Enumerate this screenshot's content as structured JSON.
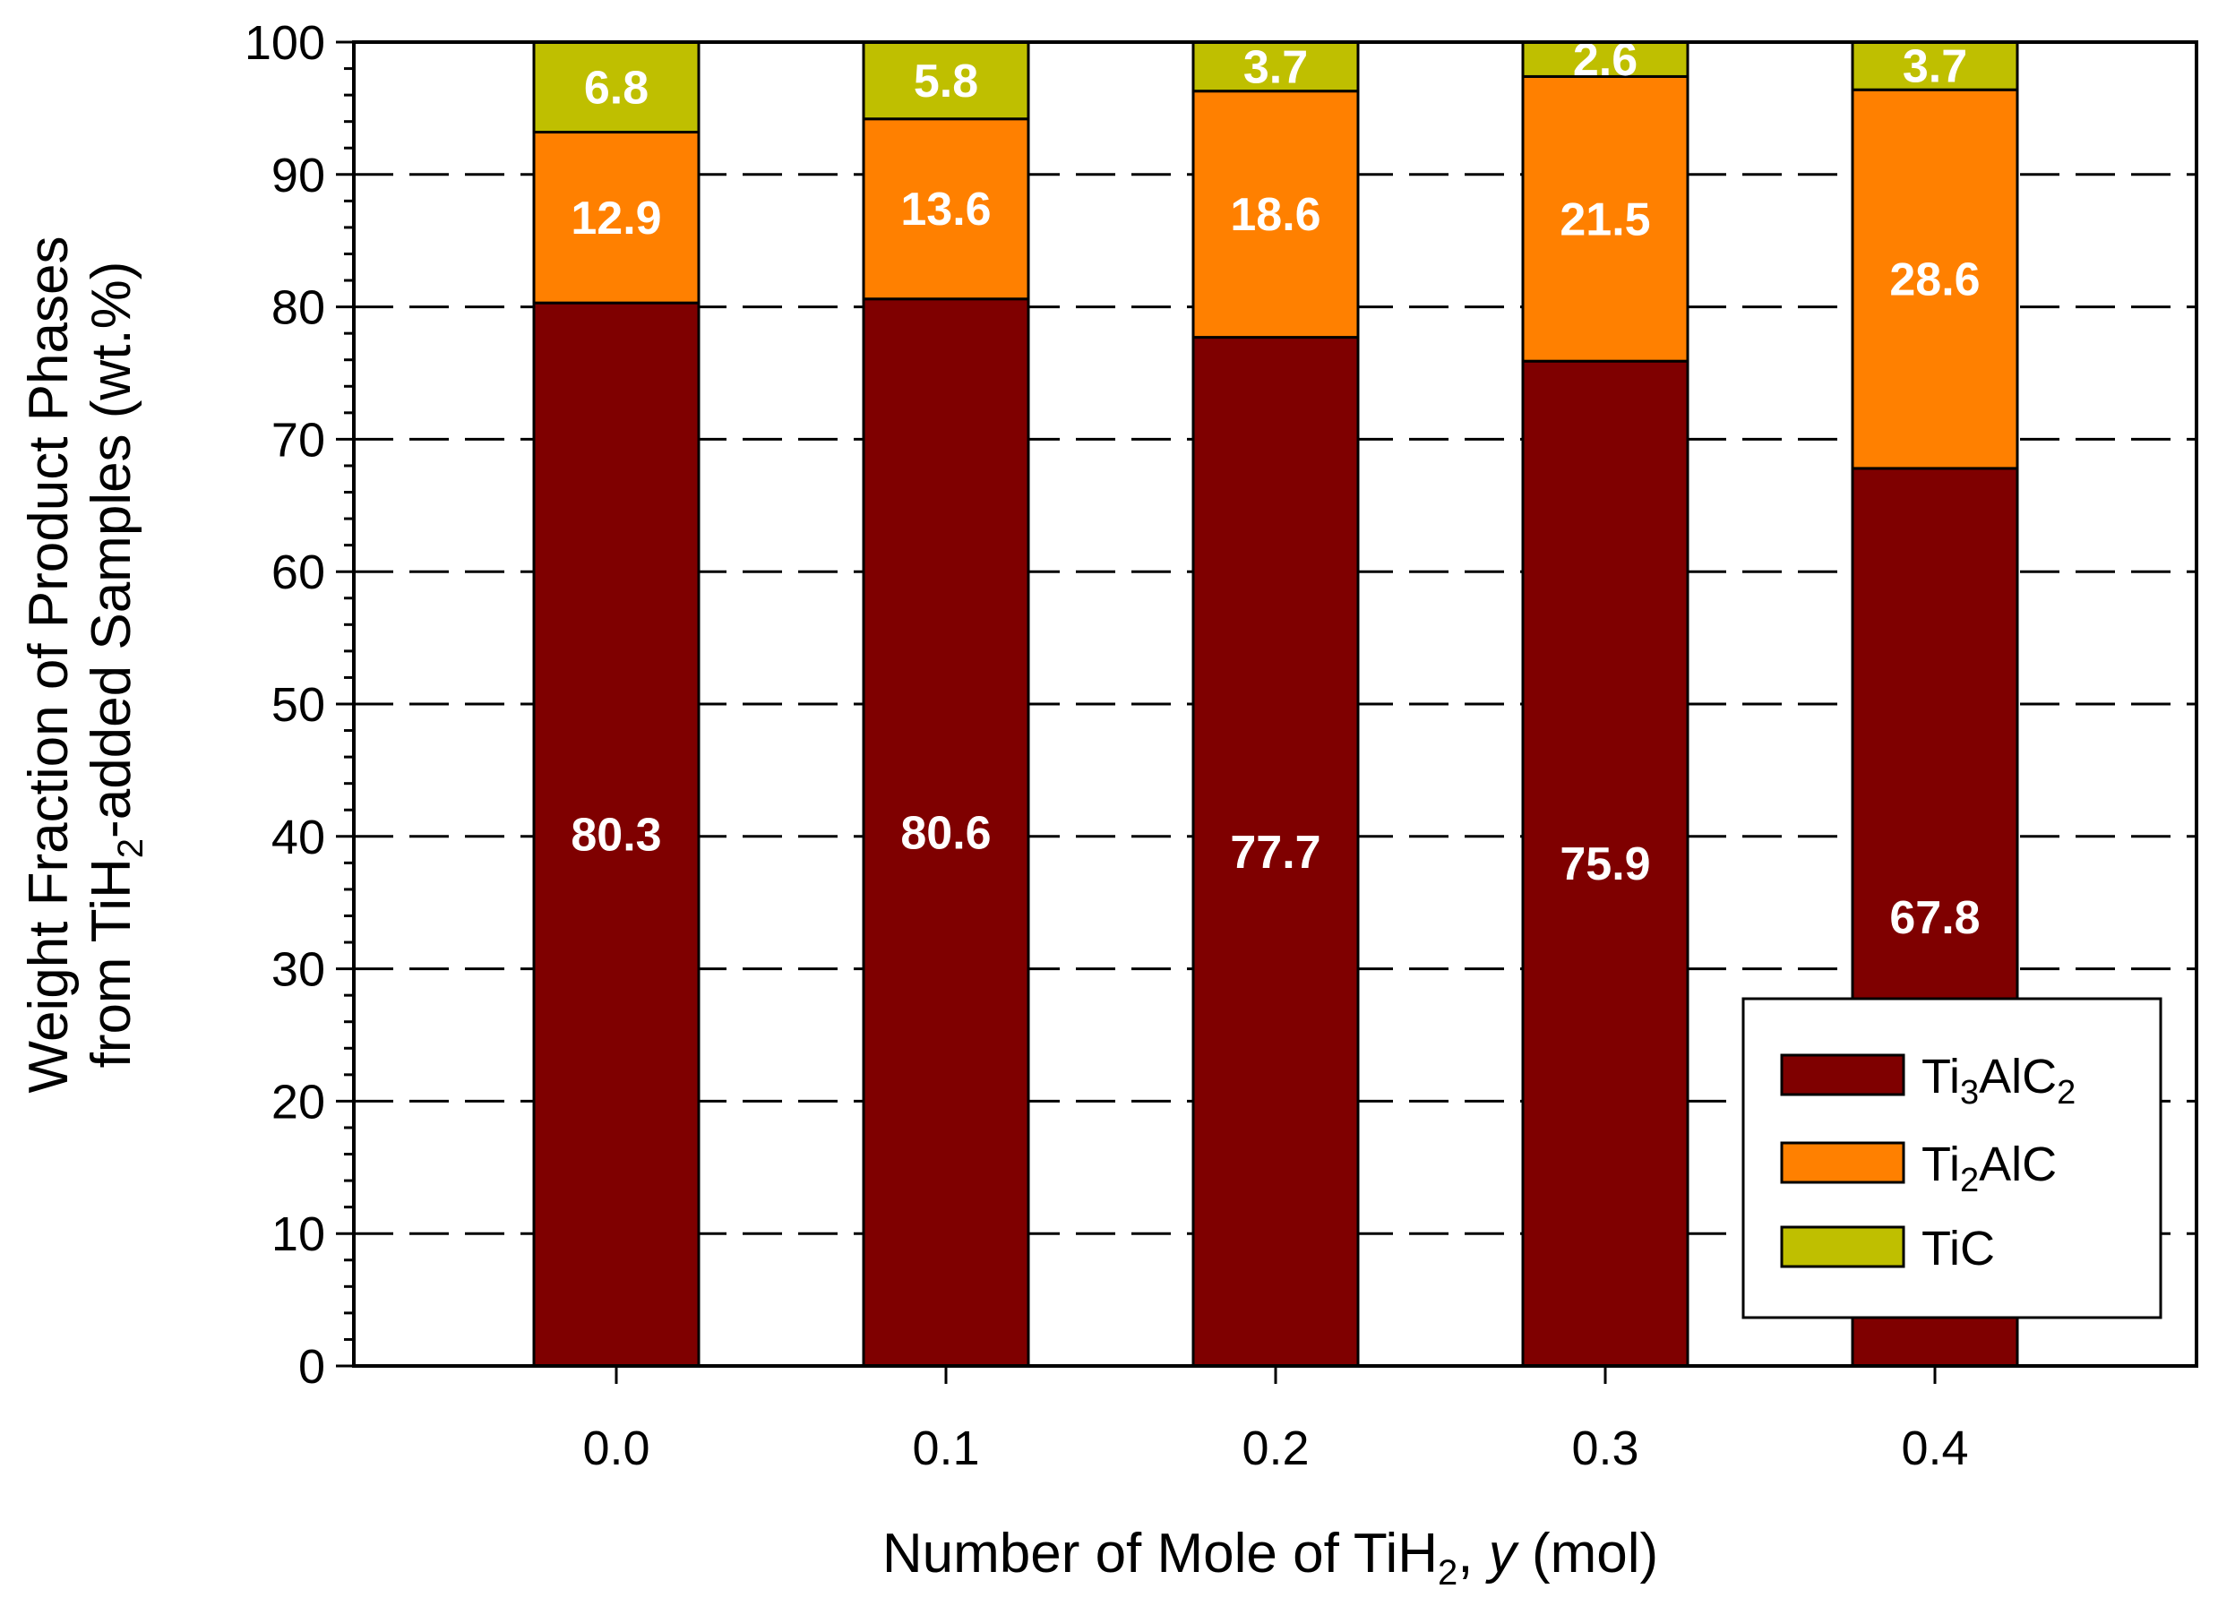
{
  "chart_data": {
    "type": "bar",
    "stacked": true,
    "categories": [
      "0.0",
      "0.1",
      "0.2",
      "0.3",
      "0.4"
    ],
    "series": [
      {
        "name": "Ti3AlC2",
        "label_main": "Ti",
        "label_sub1": "3",
        "label_mid": "AlC",
        "label_sub2": "2",
        "color": "#7f0000",
        "values": [
          80.3,
          80.6,
          77.7,
          75.9,
          67.8
        ]
      },
      {
        "name": "Ti2AlC",
        "label_main": "Ti",
        "label_sub1": "2",
        "label_mid": "AlC",
        "label_sub2": "",
        "color": "#ff8000",
        "values": [
          12.9,
          13.6,
          18.6,
          21.5,
          28.6
        ]
      },
      {
        "name": "TiC",
        "label_main": "TiC",
        "label_sub1": "",
        "label_mid": "",
        "label_sub2": "",
        "color": "#bfbf00",
        "values": [
          6.8,
          5.8,
          3.7,
          2.6,
          3.7
        ]
      }
    ],
    "data_labels": [
      [
        "80.3",
        "80.6",
        "77.7",
        "75.9",
        "67.8"
      ],
      [
        "12.9",
        "13.6",
        "18.6",
        "21.5",
        "28.6"
      ],
      [
        "6.8",
        "5.8",
        "3.7",
        "2.6",
        "3.7"
      ]
    ],
    "ylim": [
      0,
      100
    ],
    "yticks": [
      "0",
      "10",
      "20",
      "30",
      "40",
      "50",
      "60",
      "70",
      "80",
      "90",
      "100"
    ],
    "grid": "horizontal dashed",
    "legend_position": "bottom-right",
    "xlabel": {
      "prefix": "Number of Mole of TiH",
      "sub": "2",
      "mid": ", ",
      "italic": "y",
      "suffix": " (mol)"
    },
    "ylabel": {
      "line1": "Weight Fraction of Product Phases",
      "line2_prefix": "from TiH",
      "line2_sub": "2",
      "line2_suffix": "-added Samples (wt.%)"
    }
  }
}
